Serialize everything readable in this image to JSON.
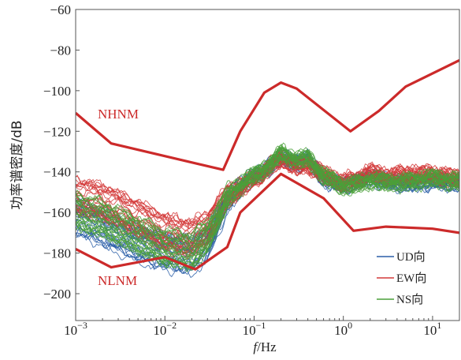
{
  "chart_data": {
    "type": "line",
    "title": "",
    "ylabel": "功率谱密度/dB",
    "xlabel_italic": "f",
    "xlabel_rest": "/Hz",
    "xscale": "log",
    "xlim": [
      0.001,
      20
    ],
    "ylim": [
      -210,
      -60
    ],
    "yticks": [
      -60,
      -80,
      -100,
      -120,
      -140,
      -160,
      -180,
      -200
    ],
    "ytick_labels": [
      "−60",
      "−80",
      "−100",
      "−120",
      "−140",
      "−160",
      "−180",
      "−200"
    ],
    "xticks": [
      {
        "value": 0.001,
        "base": "10",
        "exp": "−3"
      },
      {
        "value": 0.01,
        "base": "10",
        "exp": "−2"
      },
      {
        "value": 0.1,
        "base": "10",
        "exp": "−1"
      },
      {
        "value": 1,
        "base": "10",
        "exp": "0"
      },
      {
        "value": 10,
        "base": "10",
        "exp": "1"
      }
    ],
    "model_curves": [
      {
        "name": "NHNM",
        "color": "#cc2a2a",
        "x": [
          0.001,
          0.0025,
          0.045,
          0.07,
          0.13,
          0.2,
          0.3,
          1.2,
          2.5,
          5,
          20
        ],
        "y": [
          -111,
          -126,
          -139,
          -120,
          -101,
          -96,
          -99,
          -120,
          -110,
          -98,
          -85
        ]
      },
      {
        "name": "NLNM",
        "color": "#cc2a2a",
        "x": [
          0.001,
          0.0025,
          0.01,
          0.022,
          0.05,
          0.07,
          0.2,
          0.6,
          1.3,
          3,
          10,
          20
        ],
        "y": [
          -178,
          -187,
          -182,
          -188,
          -177,
          -160,
          -141,
          -153,
          -169,
          -167,
          -168,
          -170
        ]
      }
    ],
    "series": [
      {
        "name": "UD向",
        "color": "#2b5fa8",
        "mean_x": [
          0.001,
          0.002,
          0.005,
          0.01,
          0.02,
          0.03,
          0.05,
          0.08,
          0.12,
          0.2,
          0.3,
          0.4,
          0.6,
          1,
          1.5,
          2,
          3,
          5,
          10,
          20
        ],
        "mean_y": [
          -163,
          -168,
          -176,
          -180,
          -182,
          -176,
          -155,
          -145,
          -141,
          -133,
          -136,
          -134,
          -144,
          -147,
          -145,
          -143,
          -145,
          -146,
          -145,
          -146
        ]
      },
      {
        "name": "EW向",
        "color": "#d43a3a",
        "mean_x": [
          0.001,
          0.002,
          0.005,
          0.01,
          0.02,
          0.03,
          0.05,
          0.08,
          0.12,
          0.2,
          0.3,
          0.4,
          0.6,
          1,
          1.5,
          2,
          3,
          5,
          10,
          20
        ],
        "mean_y": [
          -152,
          -155,
          -163,
          -170,
          -173,
          -168,
          -152,
          -146,
          -141,
          -133,
          -137,
          -136,
          -141,
          -145,
          -143,
          -140,
          -142,
          -141,
          -141,
          -143
        ]
      },
      {
        "name": "NS向",
        "color": "#4aa03a",
        "mean_x": [
          0.001,
          0.002,
          0.005,
          0.01,
          0.02,
          0.03,
          0.05,
          0.08,
          0.12,
          0.2,
          0.3,
          0.4,
          0.6,
          1,
          1.5,
          2,
          3,
          5,
          10,
          20
        ],
        "mean_y": [
          -158,
          -162,
          -170,
          -176,
          -178,
          -171,
          -152,
          -144,
          -140,
          -131,
          -134,
          -133,
          -142,
          -147,
          -146,
          -144,
          -145,
          -145,
          -143,
          -145
        ]
      }
    ],
    "legend_position": "bottom-right",
    "grid": false
  }
}
